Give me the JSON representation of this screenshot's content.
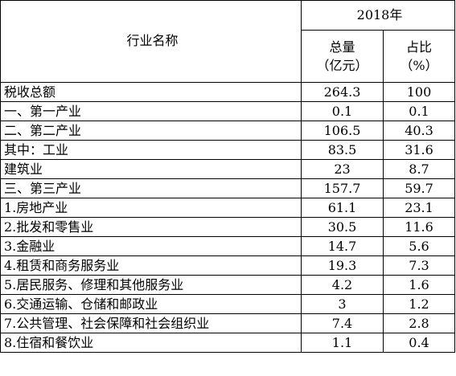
{
  "table": {
    "header": {
      "name_col": "行业名称",
      "year": "2018年",
      "total_line1": "总量",
      "total_line2": "（亿元）",
      "share_line1": "占比",
      "share_line2": "（%）"
    },
    "rows": [
      {
        "name": "税收总额",
        "total": "264.3",
        "share": "100"
      },
      {
        "name": "一、第一产业",
        "total": "0.1",
        "share": "0.1"
      },
      {
        "name": "二、第二产业",
        "total": "106.5",
        "share": "40.3"
      },
      {
        "name": "其中：工业",
        "total": "83.5",
        "share": "31.6"
      },
      {
        "name": "建筑业",
        "total": "23",
        "share": "8.7"
      },
      {
        "name": "三、第三产业",
        "total": "157.7",
        "share": "59.7"
      },
      {
        "name": "1.房地产业",
        "total": "61.1",
        "share": "23.1"
      },
      {
        "name": "2.批发和零售业",
        "total": "30.5",
        "share": "11.6"
      },
      {
        "name": "3.金融业",
        "total": "14.7",
        "share": "5.6"
      },
      {
        "name": "4.租赁和商务服务业",
        "total": "19.3",
        "share": "7.3"
      },
      {
        "name": "5.居民服务、修理和其他服务业",
        "total": "4.2",
        "share": "1.6"
      },
      {
        "name": "6.交通运输、仓储和邮政业",
        "total": "3",
        "share": "1.2"
      },
      {
        "name": "7.公共管理、社会保障和社会组织业",
        "total": "7.4",
        "share": "2.8"
      },
      {
        "name": "8.住宿和餐饮业",
        "total": "1.1",
        "share": "0.4"
      }
    ]
  }
}
